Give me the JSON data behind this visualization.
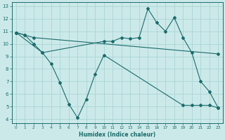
{
  "xlabel": "Humidex (Indice chaleur)",
  "xlim": [
    -0.5,
    23.5
  ],
  "ylim": [
    3.7,
    13.3
  ],
  "xticks": [
    0,
    1,
    2,
    3,
    4,
    5,
    6,
    7,
    8,
    9,
    10,
    11,
    12,
    13,
    14,
    15,
    16,
    17,
    18,
    19,
    20,
    21,
    22,
    23
  ],
  "yticks": [
    4,
    5,
    6,
    7,
    8,
    9,
    10,
    11,
    12,
    13
  ],
  "bg_color": "#cce9e9",
  "line_color": "#1a6b6b",
  "grid_color": "#aad4d4",
  "series": [
    {
      "x": [
        0,
        1,
        2,
        3,
        10,
        11,
        12,
        13,
        14,
        15,
        16,
        17,
        18,
        19,
        20,
        21,
        22,
        23
      ],
      "y": [
        10.9,
        10.7,
        10.0,
        9.3,
        10.2,
        10.2,
        10.5,
        10.4,
        10.5,
        12.8,
        11.7,
        11.0,
        12.1,
        10.5,
        9.3,
        7.0,
        6.2,
        4.9
      ]
    },
    {
      "x": [
        0,
        1,
        2,
        23
      ],
      "y": [
        10.9,
        10.7,
        10.5,
        9.2
      ]
    },
    {
      "x": [
        0,
        3,
        4,
        5,
        6,
        7,
        8,
        9,
        10,
        19,
        20,
        21,
        22,
        23
      ],
      "y": [
        10.9,
        9.3,
        8.4,
        6.9,
        5.2,
        4.1,
        5.6,
        7.6,
        9.1,
        5.1,
        5.1,
        5.1,
        5.1,
        4.9
      ]
    }
  ]
}
